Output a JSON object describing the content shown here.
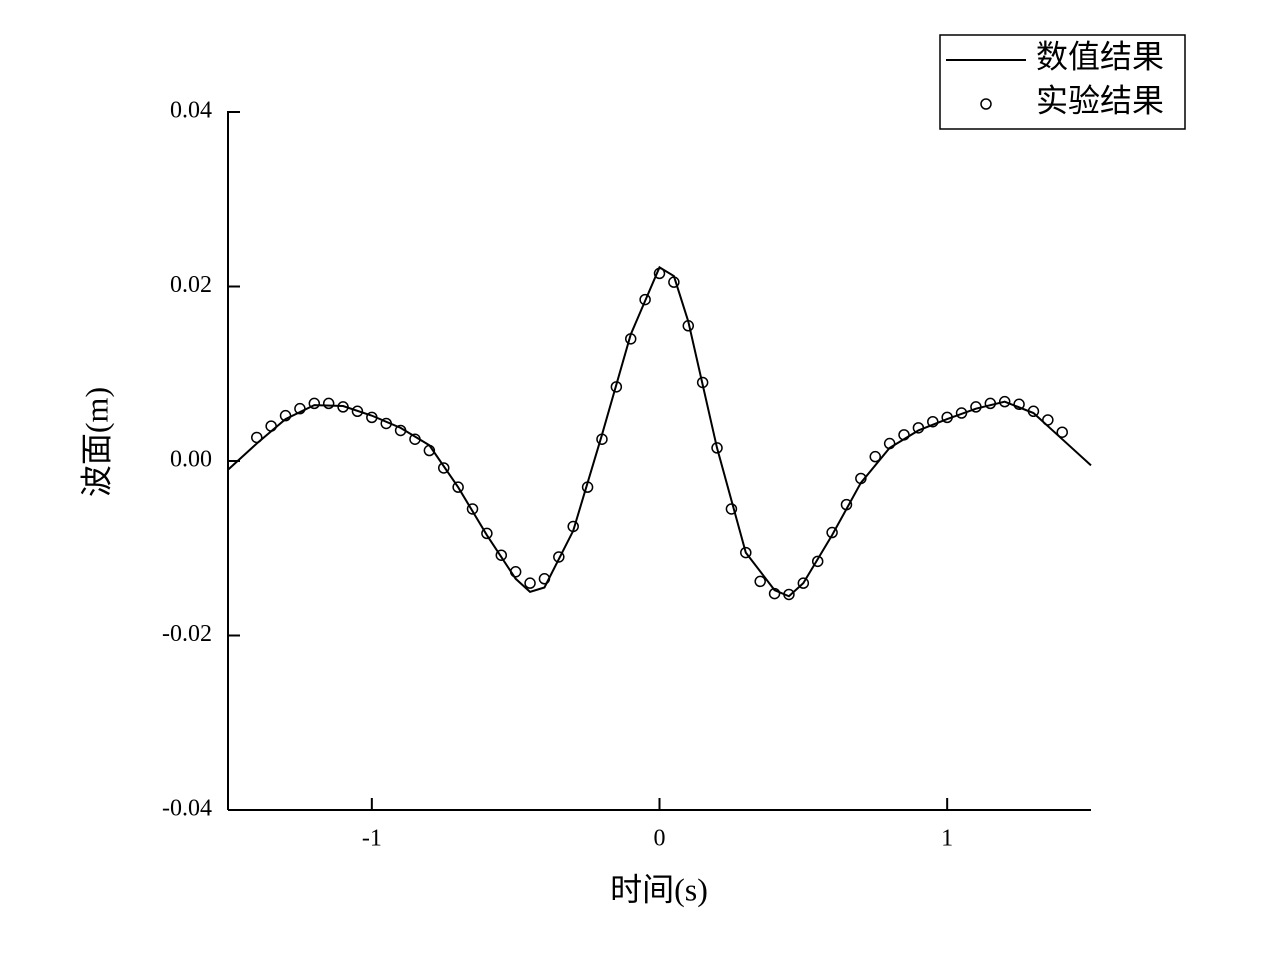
{
  "chart_data": {
    "type": "line",
    "x_label": "时间(s)",
    "y_label": "波面(m)",
    "xlim": [
      -1.5,
      1.5
    ],
    "xticks": [
      -1,
      0,
      1
    ],
    "ylim": [
      -0.04,
      0.04
    ],
    "yticks": [
      -0.04,
      -0.02,
      {
        "value": 0,
        "label": "0.00"
      },
      0.02,
      0.04
    ],
    "grid": false,
    "legend": "upper right",
    "series": [
      {
        "name": "数值结果",
        "style": "line",
        "color": "#000000",
        "x": [
          -1.5,
          -1.4,
          -1.3,
          -1.2,
          -1.1,
          -1.0,
          -0.9,
          -0.8,
          -0.7,
          -0.6,
          -0.5,
          -0.45,
          -0.4,
          -0.3,
          -0.2,
          -0.1,
          0,
          0.05,
          0.1,
          0.2,
          0.3,
          0.4,
          0.45,
          0.5,
          0.6,
          0.7,
          0.8,
          0.9,
          1.0,
          1.1,
          1.2,
          1.3,
          1.4,
          1.5
        ],
        "values": [
          -0.001,
          0.002,
          0.0048,
          0.0064,
          0.0063,
          0.0052,
          0.0038,
          0.0018,
          -0.003,
          -0.0085,
          -0.0135,
          -0.015,
          -0.0145,
          -0.008,
          0.003,
          0.0145,
          0.0222,
          0.0212,
          0.016,
          0.0015,
          -0.0105,
          -0.0148,
          -0.0155,
          -0.014,
          -0.0085,
          -0.0025,
          0.0015,
          0.0035,
          0.0048,
          0.006,
          0.0068,
          0.0055,
          0.0025,
          -0.0005
        ]
      },
      {
        "name": "实验结果",
        "style": "marker",
        "color": "#000000",
        "x": [
          -1.4,
          -1.35,
          -1.3,
          -1.25,
          -1.2,
          -1.15,
          -1.1,
          -1.05,
          -1.0,
          -0.95,
          -0.9,
          -0.85,
          -0.8,
          -0.75,
          -0.7,
          -0.65,
          -0.6,
          -0.55,
          -0.5,
          -0.45,
          -0.4,
          -0.35,
          -0.3,
          -0.25,
          -0.2,
          -0.15,
          -0.1,
          -0.05,
          0,
          0.05,
          0.1,
          0.15,
          0.2,
          0.25,
          0.3,
          0.35,
          0.4,
          0.45,
          0.5,
          0.55,
          0.6,
          0.65,
          0.7,
          0.75,
          0.8,
          0.85,
          0.9,
          0.95,
          1.0,
          1.05,
          1.1,
          1.15,
          1.2,
          1.25,
          1.3,
          1.35,
          1.4
        ],
        "values": [
          0.0027,
          0.004,
          0.0052,
          0.006,
          0.0066,
          0.0066,
          0.0062,
          0.0057,
          0.005,
          0.0043,
          0.0035,
          0.0025,
          0.0012,
          -0.0008,
          -0.003,
          -0.0055,
          -0.0083,
          -0.0108,
          -0.0127,
          -0.014,
          -0.0135,
          -0.011,
          -0.0075,
          -0.003,
          0.0025,
          0.0085,
          0.014,
          0.0185,
          0.0215,
          0.0205,
          0.0155,
          0.009,
          0.0015,
          -0.0055,
          -0.0105,
          -0.0138,
          -0.0152,
          -0.0153,
          -0.014,
          -0.0115,
          -0.0082,
          -0.005,
          -0.002,
          0.0005,
          0.002,
          0.003,
          0.0038,
          0.0045,
          0.005,
          0.0055,
          0.0062,
          0.0066,
          0.0068,
          0.0065,
          0.0057,
          0.0047,
          0.0033
        ]
      }
    ]
  }
}
